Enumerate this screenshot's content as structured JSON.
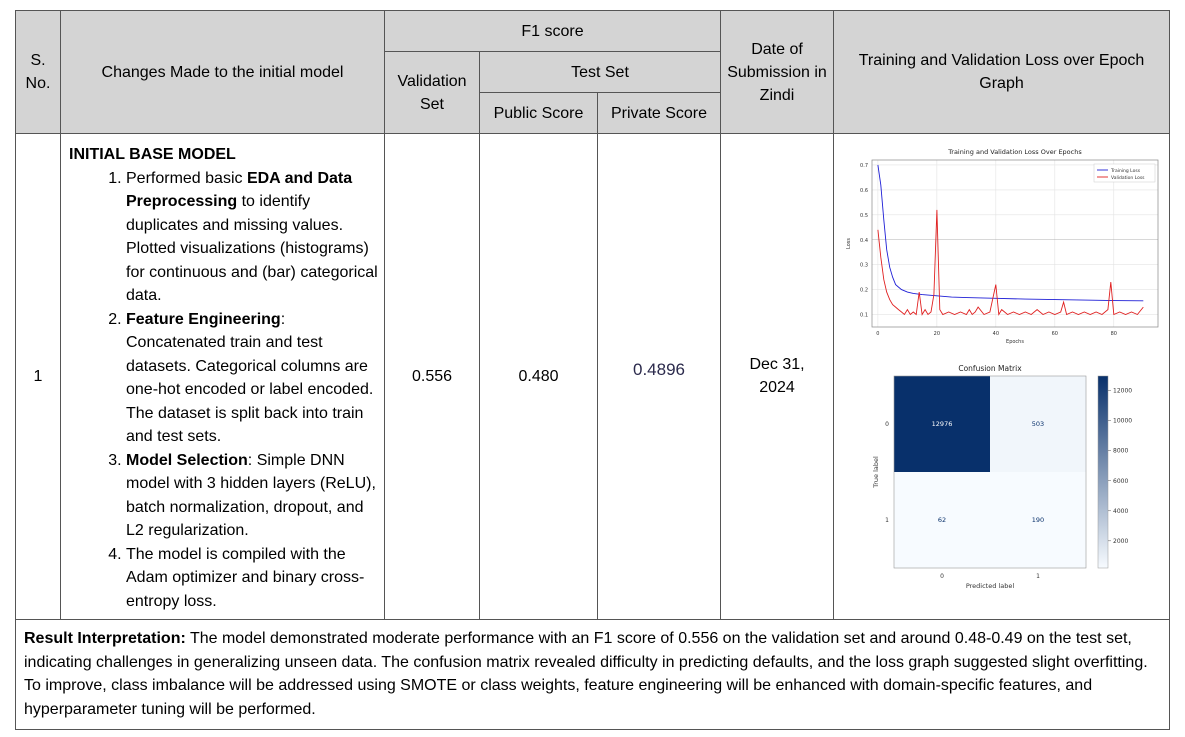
{
  "header": {
    "sno": "S.\nNo.",
    "changes": "Changes Made to the initial model",
    "f1": "F1 score",
    "validation": "Validation Set",
    "test": "Test Set",
    "public": "Public Score",
    "private": "Private Score",
    "date": "Date of Submission in Zindi",
    "graph": "Training and Validation Loss over Epoch Graph"
  },
  "row": {
    "sno": "1",
    "title": "INITIAL BASE MODEL",
    "items": [
      {
        "bold": "",
        "pre": "Performed basic ",
        "b": "EDA and Data Preprocessing",
        "post": " to identify duplicates and missing values. Plotted visualizations (histograms) for continuous and (bar) categorical data."
      },
      {
        "pre": "",
        "b": "Feature Engineering",
        "post": ": Concatenated train and test datasets. Categorical columns are one-hot encoded or label encoded. The dataset is split back into train and test sets."
      },
      {
        "pre": "",
        "b": "Model Selection",
        "post": ": Simple DNN model with 3 hidden layers (ReLU), batch normalization, dropout, and L2 regularization."
      },
      {
        "pre": "The model is compiled with the Adam optimizer and binary cross-entropy loss.",
        "b": "",
        "post": ""
      }
    ],
    "validation": "0.556",
    "public": "0.480",
    "private": "0.4896",
    "date": "Dec 31, 2024"
  },
  "result": {
    "label": "Result Interpretation:",
    "text": "  The model demonstrated moderate performance with an F1 score of 0.556 on the validation set and around 0.48-0.49 on the test set, indicating challenges in generalizing unseen data. The confusion matrix revealed difficulty in predicting defaults, and the loss graph suggested slight overfitting. To improve, class imbalance will be addressed using SMOTE or class weights, feature engineering will be enhanced with domain-specific features, and hyperparameter tuning will be performed."
  },
  "chart_data": [
    {
      "type": "line",
      "title": "Training and Validation Loss Over Epochs",
      "xlabel": "Epochs",
      "ylabel": "Loss",
      "xlim": [
        -2,
        95
      ],
      "ylim": [
        0.05,
        0.72
      ],
      "xticks": [
        "0",
        "20",
        "40",
        "60",
        "80"
      ],
      "yticks": [
        "0.1",
        "0.2",
        "0.3",
        "0.4",
        "0.5",
        "0.6",
        "0.7"
      ],
      "legend_position": "top-right",
      "grid": true,
      "series": [
        {
          "name": "Training Loss",
          "color": "#1f1fd6",
          "x": [
            0,
            1,
            2,
            3,
            4,
            5,
            6,
            7,
            8,
            10,
            12,
            15,
            20,
            25,
            30,
            40,
            50,
            60,
            70,
            80,
            90
          ],
          "y": [
            0.7,
            0.62,
            0.48,
            0.36,
            0.29,
            0.25,
            0.22,
            0.21,
            0.2,
            0.19,
            0.185,
            0.18,
            0.175,
            0.17,
            0.168,
            0.165,
            0.162,
            0.16,
            0.158,
            0.156,
            0.155
          ]
        },
        {
          "name": "Validation Loss",
          "color": "#e02020",
          "x": [
            0,
            1,
            2,
            3,
            4,
            5,
            6,
            7,
            8,
            9,
            10,
            11,
            12,
            13,
            14,
            15,
            16,
            17,
            18,
            19,
            20,
            21,
            22,
            24,
            26,
            28,
            30,
            31,
            32,
            33,
            34,
            36,
            38,
            40,
            41,
            42,
            44,
            46,
            48,
            50,
            52,
            54,
            56,
            58,
            60,
            62,
            63,
            64,
            66,
            68,
            70,
            72,
            74,
            76,
            78,
            79,
            80,
            82,
            84,
            86,
            88,
            90
          ],
          "y": [
            0.44,
            0.33,
            0.24,
            0.19,
            0.16,
            0.14,
            0.13,
            0.12,
            0.11,
            0.1,
            0.12,
            0.1,
            0.11,
            0.1,
            0.19,
            0.1,
            0.12,
            0.1,
            0.11,
            0.18,
            0.52,
            0.12,
            0.1,
            0.11,
            0.1,
            0.11,
            0.1,
            0.12,
            0.1,
            0.11,
            0.13,
            0.1,
            0.11,
            0.22,
            0.1,
            0.12,
            0.1,
            0.11,
            0.1,
            0.11,
            0.1,
            0.12,
            0.1,
            0.11,
            0.1,
            0.11,
            0.15,
            0.1,
            0.11,
            0.1,
            0.11,
            0.1,
            0.11,
            0.1,
            0.12,
            0.23,
            0.1,
            0.11,
            0.1,
            0.11,
            0.1,
            0.13
          ]
        }
      ]
    },
    {
      "type": "heatmap",
      "title": "Confusion Matrix",
      "xlabel": "Predicted label",
      "ylabel": "True label",
      "x_categories": [
        "0",
        "1"
      ],
      "y_categories": [
        "0",
        "1"
      ],
      "values": [
        [
          12976,
          503
        ],
        [
          62,
          190
        ]
      ],
      "colorbar_ticks": [
        "12000",
        "10000",
        "8000",
        "6000",
        "4000",
        "2000"
      ],
      "colorbar_range": [
        190,
        12976
      ]
    }
  ]
}
